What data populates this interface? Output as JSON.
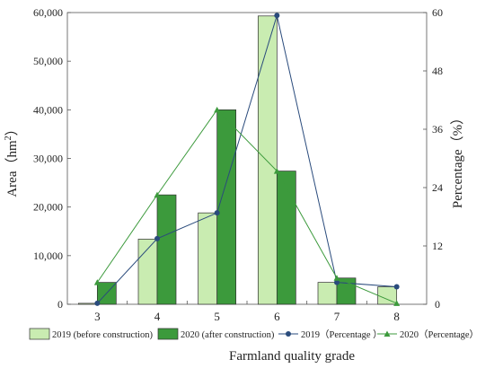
{
  "chart_data": {
    "type": "bar",
    "xlabel": "Farmland quality grade",
    "ylabel_left": "Area（hm",
    "ylabel_left_sup": "2",
    "ylabel_left_close": "）",
    "ylabel_right": "Percentage（%）",
    "categories": [
      "3",
      "4",
      "5",
      "6",
      "7",
      "8"
    ],
    "y_left": {
      "min": 0,
      "max": 60000,
      "ticks": [
        "0",
        "10,000",
        "20,000",
        "30,000",
        "40,000",
        "50,000",
        "60,000"
      ]
    },
    "y_right": {
      "min": 0,
      "max": 60,
      "ticks": [
        "0",
        "12",
        "24",
        "36",
        "48",
        "60"
      ]
    },
    "bar_series": [
      {
        "name": "2019 (before construction)",
        "color": "#c9ecb1",
        "values": [
          200,
          13400,
          18800,
          59300,
          4500,
          3600
        ]
      },
      {
        "name": "2020 (after construction)",
        "color": "#3c9a3c",
        "values": [
          4500,
          22500,
          40000,
          27400,
          5400,
          0
        ]
      }
    ],
    "line_series": [
      {
        "name": "2019（Percentage ）",
        "color": "#2a4b7c",
        "marker": "circle",
        "values": [
          0.2,
          13.5,
          18.8,
          59.4,
          4.5,
          3.6
        ]
      },
      {
        "name": "2020（Percentage）",
        "color": "#3c9a3c",
        "marker": "triangle",
        "values": [
          4.5,
          22.5,
          40.0,
          27.4,
          5.4,
          0.2
        ]
      }
    ],
    "grid": false,
    "legend_position": "bottom"
  }
}
